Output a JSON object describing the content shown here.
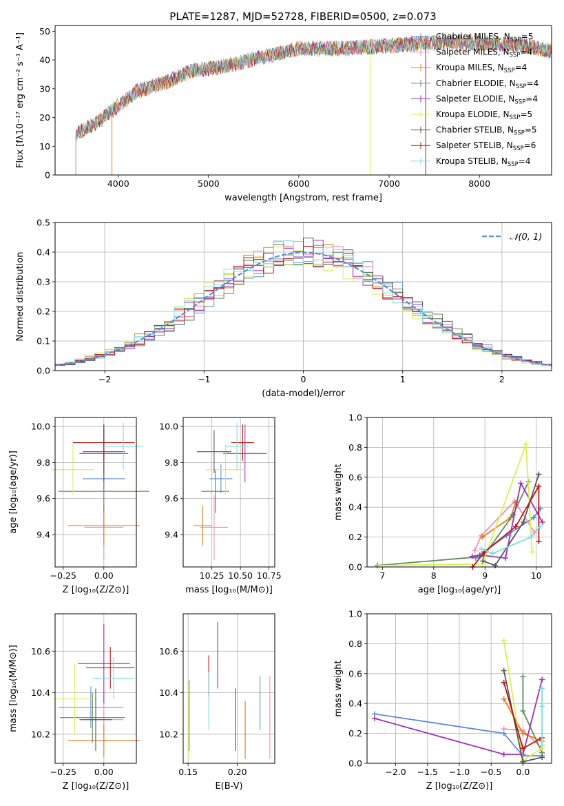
{
  "figure_title": "PLATE=1287, MJD=52728, FIBERID=0500, z=0.073",
  "colors": {
    "Chabrier MILES": "#5b8bd9",
    "Salpeter MILES": "#f08eb0",
    "Kroupa MILES": "#e07b1a",
    "Chabrier ELODIE": "#5f8a5f",
    "Salpeter ELODIE": "#a02eb8",
    "Kroupa ELODIE": "#d8ee55",
    "Chabrier STELIB": "#555555",
    "Salpeter STELIB": "#b81414",
    "Kroupa STELIB": "#7fdcdc",
    "normal": "#5b8bd9"
  },
  "chart_data": [
    {
      "id": "spectrum",
      "type": "line",
      "xlabel": "wavelength [Angstrom, rest frame]",
      "ylabel": "Flux [fλ10⁻¹⁷ erg cm⁻² s⁻¹ A⁻¹]",
      "xlim": [
        3300,
        8800
      ],
      "ylim": [
        0,
        52
      ],
      "xticks": [
        "4000",
        "5000",
        "6000",
        "7000",
        "8000"
      ],
      "yticks": [
        "0",
        "10",
        "20",
        "30",
        "40",
        "50"
      ],
      "grid": false,
      "legend_position": "right",
      "continuum": {
        "x": [
          3530,
          3800,
          4000,
          4200,
          4500,
          4800,
          5200,
          5600,
          6000,
          6500,
          7000,
          7500,
          8000,
          8500,
          8800
        ],
        "y": [
          14,
          19,
          24,
          29,
          32,
          36,
          38,
          41,
          44,
          44,
          45,
          46,
          46,
          45,
          43
        ]
      },
      "legend": [
        {
          "label": "Chabrier MILES, N",
          "sub": "SSP",
          "suffix": "=5"
        },
        {
          "label": "Salpeter MILES, N",
          "sub": "SSP",
          "suffix": "=4"
        },
        {
          "label": "Kroupa MILES, N",
          "sub": "SSP",
          "suffix": "=4"
        },
        {
          "label": "Chabrier ELODIE, N",
          "sub": "SSP",
          "suffix": "=4"
        },
        {
          "label": "Salpeter ELODIE, N",
          "sub": "SSP",
          "suffix": "=4"
        },
        {
          "label": "Kroupa ELODIE, N",
          "sub": "SSP",
          "suffix": "=5"
        },
        {
          "label": "Chabrier STELIB, N",
          "sub": "SSP",
          "suffix": "=5"
        },
        {
          "label": "Salpeter STELIB, N",
          "sub": "SSP",
          "suffix": "=6"
        },
        {
          "label": "Kroupa STELIB, N",
          "sub": "SSP",
          "suffix": "=4"
        }
      ]
    },
    {
      "id": "residuals",
      "type": "histogram",
      "xlabel": "(data-model)/error",
      "ylabel": "Normed distribution",
      "xlim": [
        -2.5,
        2.5
      ],
      "ylim": [
        0,
        0.5
      ],
      "xticks": [
        "−2",
        "−1",
        "0",
        "1",
        "2"
      ],
      "yticks": [
        "0.0",
        "0.1",
        "0.2",
        "0.3",
        "0.4",
        "0.5"
      ],
      "grid": true,
      "bin_width": 0.1,
      "legend": [
        {
          "label": "𝒩(0, 1)"
        }
      ],
      "legend_position": "top-right"
    },
    {
      "id": "age_vs_Z",
      "type": "errorbar",
      "xlabel": "Z [log₁₀(Z/Z⊙)]",
      "ylabel": "age  [log₁₀(age/yr)]",
      "xlim": [
        -0.3,
        0.2
      ],
      "ylim": [
        9.22,
        10.05
      ],
      "xticks": [
        "−0.25",
        "0.00"
      ],
      "yticks": [
        "9.4",
        "9.6",
        "9.8",
        "10.0"
      ],
      "grid": true,
      "points": [
        {
          "series": "Chabrier MILES",
          "x": 0.0,
          "xerr": 0.13,
          "y": 9.71,
          "yerr": 0.08
        },
        {
          "series": "Salpeter MILES",
          "x": 0.0,
          "xerr": 0.12,
          "y": 9.44,
          "yerr": 0.18
        },
        {
          "series": "Kroupa MILES",
          "x": 0.0,
          "xerr": 0.22,
          "y": 9.45,
          "yerr": 0.11
        },
        {
          "series": "Chabrier ELODIE",
          "x": 0.0,
          "xerr": 0.28,
          "y": 9.64,
          "yerr": 0.12
        },
        {
          "series": "Salpeter ELODIE",
          "x": 0.0,
          "xerr": 0.15,
          "y": 9.85,
          "yerr": 0.16
        },
        {
          "series": "Kroupa ELODIE",
          "x": -0.19,
          "xerr": 0.13,
          "y": 9.76,
          "yerr": 0.14
        },
        {
          "series": "Chabrier STELIB",
          "x": 0.0,
          "xerr": 0.13,
          "y": 9.86,
          "yerr": 0.12
        },
        {
          "series": "Salpeter STELIB",
          "x": 0.0,
          "xerr": 0.19,
          "y": 9.91,
          "yerr": 0.1
        },
        {
          "series": "Kroupa STELIB",
          "x": 0.12,
          "xerr": 0.12,
          "y": 9.89,
          "yerr": 0.13
        }
      ]
    },
    {
      "id": "age_vs_mass",
      "type": "errorbar",
      "xlabel": "mass [log₁₀(M/M⊙)]",
      "ylabel": "",
      "xlim": [
        10.0,
        10.8
      ],
      "ylim": [
        9.22,
        10.05
      ],
      "xticks": [
        "10.25",
        "10.50",
        "10.75"
      ],
      "yticks": [
        "9.4",
        "9.6",
        "9.8",
        "10.0"
      ],
      "grid": true,
      "points": [
        {
          "series": "Chabrier MILES",
          "x": 10.33,
          "xerr": 0.1,
          "y": 9.71,
          "yerr": 0.08
        },
        {
          "series": "Salpeter MILES",
          "x": 10.27,
          "xerr": 0.12,
          "y": 9.44,
          "yerr": 0.18
        },
        {
          "series": "Kroupa MILES",
          "x": 10.17,
          "xerr": 0.08,
          "y": 9.45,
          "yerr": 0.11
        },
        {
          "series": "Chabrier ELODIE",
          "x": 10.28,
          "xerr": 0.12,
          "y": 9.64,
          "yerr": 0.12
        },
        {
          "series": "Salpeter ELODIE",
          "x": 10.54,
          "xerr": 0.19,
          "y": 9.85,
          "yerr": 0.16
        },
        {
          "series": "Kroupa ELODIE",
          "x": 10.37,
          "xerr": 0.17,
          "y": 9.76,
          "yerr": 0.14
        },
        {
          "series": "Chabrier STELIB",
          "x": 10.27,
          "xerr": 0.15,
          "y": 9.86,
          "yerr": 0.12
        },
        {
          "series": "Salpeter STELIB",
          "x": 10.52,
          "xerr": 0.1,
          "y": 9.91,
          "yerr": 0.1
        },
        {
          "series": "Kroupa STELIB",
          "x": 10.47,
          "xerr": 0.1,
          "y": 9.89,
          "yerr": 0.13
        }
      ]
    },
    {
      "id": "weight_vs_age",
      "type": "line",
      "xlabel": "age  [log₁₀(age/yr)]",
      "ylabel": "mass weight",
      "xlim": [
        6.7,
        10.3
      ],
      "ylim": [
        0,
        1
      ],
      "xticks": [
        "7",
        "8",
        "9",
        "10"
      ],
      "yticks": [
        "0.0",
        "0.2",
        "0.4",
        "0.6",
        "0.8",
        "1.0"
      ],
      "grid": true,
      "series": [
        {
          "name": "Chabrier MILES",
          "x": [
            8.82,
            9.42,
            9.95,
            10.08
          ],
          "y": [
            0.06,
            0.21,
            0.33,
            0.39
          ]
        },
        {
          "name": "Salpeter MILES",
          "x": [
            8.8,
            8.93,
            9.58,
            9.97
          ],
          "y": [
            0.11,
            0.21,
            0.44,
            0.23
          ]
        },
        {
          "name": "Kroupa MILES",
          "x": [
            8.95,
            9.5,
            9.6
          ],
          "y": [
            0.2,
            0.33,
            0.43
          ]
        },
        {
          "name": "Chabrier ELODIE",
          "x": [
            6.9,
            8.97,
            9.55,
            9.85
          ],
          "y": [
            0.01,
            0.07,
            0.35,
            0.57
          ]
        },
        {
          "name": "Salpeter ELODIE",
          "x": [
            8.75,
            8.9,
            9.4,
            9.7,
            10.12
          ],
          "y": [
            0.07,
            0.08,
            0.06,
            0.56,
            0.3
          ]
        },
        {
          "name": "Kroupa ELODIE",
          "x": [
            6.95,
            8.95,
            9.8,
            9.92
          ],
          "y": [
            0.01,
            0.02,
            0.82,
            0.1
          ]
        },
        {
          "name": "Chabrier STELIB",
          "x": [
            8.96,
            9.2,
            9.75,
            10.05
          ],
          "y": [
            0.04,
            0.01,
            0.3,
            0.62
          ]
        },
        {
          "name": "Salpeter STELIB",
          "x": [
            8.76,
            8.99,
            9.6,
            10.05,
            10.05
          ],
          "y": [
            0.0,
            0.1,
            0.27,
            0.54,
            0.17
          ]
        },
        {
          "name": "Kroupa STELIB",
          "x": [
            8.93,
            9.15,
            9.9,
            10.07
          ],
          "y": [
            0.12,
            0.09,
            0.2,
            0.27
          ]
        }
      ]
    },
    {
      "id": "mass_vs_Z",
      "type": "errorbar",
      "xlabel": "Z [log₁₀(Z/Z⊙)]",
      "ylabel": "mass [log₁₀(M/M⊙)]",
      "xlim": [
        -0.3,
        0.2
      ],
      "ylim": [
        10.06,
        10.78
      ],
      "xticks": [
        "−0.25",
        "0.00"
      ],
      "yticks": [
        "10.2",
        "10.4",
        "10.6"
      ],
      "grid": true,
      "points": [
        {
          "series": "Chabrier MILES",
          "x": -0.08,
          "xerr": 0.2,
          "y": 10.33,
          "yerr": 0.1
        },
        {
          "series": "Salpeter MILES",
          "x": 0.0,
          "xerr": 0.12,
          "y": 10.27,
          "yerr": 0.12
        },
        {
          "series": "Kroupa MILES",
          "x": 0.0,
          "xerr": 0.22,
          "y": 10.17,
          "yerr": 0.08
        },
        {
          "series": "Chabrier ELODIE",
          "x": -0.07,
          "xerr": 0.2,
          "y": 10.28,
          "yerr": 0.12
        },
        {
          "series": "Salpeter ELODIE",
          "x": 0.0,
          "xerr": 0.16,
          "y": 10.54,
          "yerr": 0.19
        },
        {
          "series": "Kroupa ELODIE",
          "x": -0.18,
          "xerr": 0.13,
          "y": 10.37,
          "yerr": 0.17
        },
        {
          "series": "Chabrier STELIB",
          "x": -0.05,
          "xerr": 0.1,
          "y": 10.27,
          "yerr": 0.15
        },
        {
          "series": "Salpeter STELIB",
          "x": 0.04,
          "xerr": 0.15,
          "y": 10.52,
          "yerr": 0.1
        },
        {
          "series": "Kroupa STELIB",
          "x": 0.06,
          "xerr": 0.13,
          "y": 10.47,
          "yerr": 0.1
        }
      ]
    },
    {
      "id": "mass_vs_ebv",
      "type": "errorbar",
      "xlabel": "E(B-V)",
      "ylabel": "",
      "xlim": [
        0.145,
        0.238
      ],
      "ylim": [
        10.06,
        10.78
      ],
      "xticks": [
        "0.15",
        "0.20"
      ],
      "yticks": [
        "10.2",
        "10.4",
        "10.6"
      ],
      "grid": true,
      "points": [
        {
          "series": "Chabrier MILES",
          "x": 0.223,
          "xerr": 0,
          "y": 10.35,
          "yerr": 0.13
        },
        {
          "series": "Salpeter MILES",
          "x": 0.233,
          "xerr": 0,
          "y": 10.28,
          "yerr": 0.2
        },
        {
          "series": "Kroupa MILES",
          "x": 0.208,
          "xerr": 0,
          "y": 10.22,
          "yerr": 0.14
        },
        {
          "series": "Chabrier ELODIE",
          "x": 0.151,
          "xerr": 0,
          "y": 10.29,
          "yerr": 0.17
        },
        {
          "series": "Salpeter ELODIE",
          "x": 0.18,
          "xerr": 0,
          "y": 10.58,
          "yerr": 0.16
        },
        {
          "series": "Kroupa ELODIE",
          "x": 0.15,
          "xerr": 0,
          "y": 10.26,
          "yerr": 0.18
        },
        {
          "series": "Chabrier STELIB",
          "x": 0.198,
          "xerr": 0,
          "y": 10.27,
          "yerr": 0.15
        },
        {
          "series": "Salpeter STELIB",
          "x": 0.171,
          "xerr": 0,
          "y": 10.48,
          "yerr": 0.1
        },
        {
          "series": "Kroupa STELIB",
          "x": 0.171,
          "xerr": 0,
          "y": 10.36,
          "yerr": 0.14
        }
      ]
    },
    {
      "id": "weight_vs_Z",
      "type": "line",
      "xlabel": "Z [log₁₀(Z/Z⊙)]",
      "ylabel": "mass weight",
      "xlim": [
        -2.45,
        0.45
      ],
      "ylim": [
        0,
        1
      ],
      "xticks": [
        "−2.0",
        "−1.5",
        "−1.0",
        "−0.5",
        "0.0"
      ],
      "yticks": [
        "0.0",
        "0.2",
        "0.4",
        "0.6",
        "0.8",
        "1.0"
      ],
      "grid": true,
      "series": [
        {
          "name": "Chabrier MILES",
          "x": [
            -2.33,
            -0.3,
            0.0,
            0.3
          ],
          "y": [
            0.33,
            0.2,
            0.05,
            0.05
          ]
        },
        {
          "name": "Salpeter MILES",
          "x": [
            -0.3,
            0.0,
            0.3
          ],
          "y": [
            0.23,
            0.22,
            0.1
          ]
        },
        {
          "name": "Kroupa MILES",
          "x": [
            -0.3,
            0.0,
            0.3
          ],
          "y": [
            0.43,
            0.2,
            0.15
          ]
        },
        {
          "name": "Chabrier ELODIE",
          "x": [
            0.0,
            0.0,
            0.3
          ],
          "y": [
            0.58,
            0.35,
            0.07
          ]
        },
        {
          "name": "Salpeter ELODIE",
          "x": [
            -2.33,
            -0.3,
            0.0,
            0.3
          ],
          "y": [
            0.3,
            0.06,
            0.06,
            0.56
          ]
        },
        {
          "name": "Kroupa ELODIE",
          "x": [
            -0.3,
            0.0,
            0.3
          ],
          "y": [
            0.82,
            0.02,
            0.1
          ]
        },
        {
          "name": "Chabrier STELIB",
          "x": [
            -0.3,
            0.0,
            0.3
          ],
          "y": [
            0.62,
            0.01,
            0.04
          ]
        },
        {
          "name": "Salpeter STELIB",
          "x": [
            -0.3,
            0.0,
            0.3
          ],
          "y": [
            0.54,
            0.1,
            0.17
          ]
        },
        {
          "name": "Kroupa STELIB",
          "x": [
            0.3,
            0.3,
            0.3
          ],
          "y": [
            0.5,
            0.38,
            0.12
          ]
        }
      ]
    }
  ]
}
